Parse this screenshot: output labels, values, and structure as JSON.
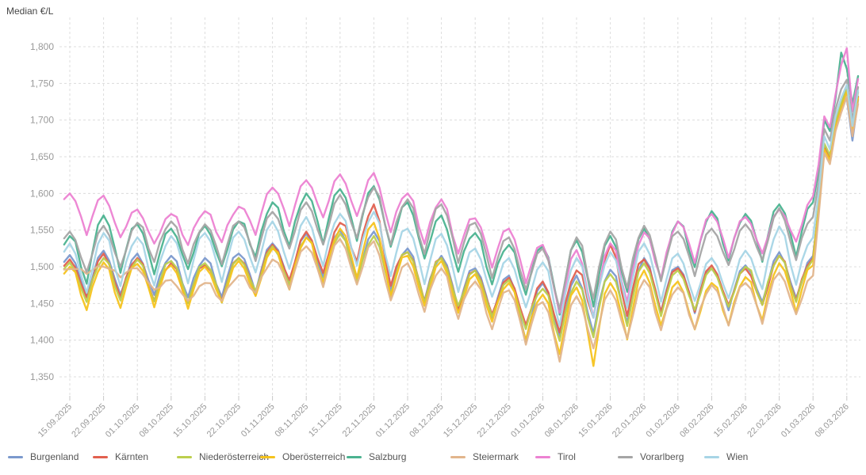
{
  "title": "Median €/L",
  "chart_data": {
    "type": "line",
    "title": "Median €/L",
    "ylabel": "Median €/L",
    "legend_position": "bottom",
    "grid": true,
    "grid_color": "#dcdcdc",
    "axis_label_color": "#999999",
    "x_tick_labels": [
      "15.09.2025",
      "22.09.2025",
      "01.10.2025",
      "08.10.2025",
      "15.10.2025",
      "22.10.2025",
      "01.11.2025",
      "08.11.2025",
      "15.11.2025",
      "22.11.2025",
      "01.12.2025",
      "08.12.2025",
      "15.12.2025",
      "22.12.2025",
      "01.01.2026",
      "08.01.2026",
      "15.01.2026",
      "22.01.2026",
      "01.02.2026",
      "08.02.2026",
      "15.02.2026",
      "22.02.2026",
      "01.03.2026",
      "08.03.2026"
    ],
    "y_ticks": [
      1350,
      1400,
      1450,
      1500,
      1550,
      1600,
      1650,
      1700,
      1750,
      1800
    ],
    "ylim": [
      1325,
      1840
    ],
    "points_per_interval": 6,
    "cycle_shape": [
      0,
      -0.18,
      -0.62,
      -1,
      -0.55,
      -0.15
    ],
    "series": [
      {
        "name": "Burgenland",
        "color": "#7b99cd",
        "weekly_highs": [
          1516,
          1522,
          1518,
          1515,
          1512,
          1518,
          1532,
          1545,
          1550,
          1548,
          1525,
          1515,
          1498,
          1488,
          1478,
          1488,
          1496,
          1512,
          1500,
          1498,
          1502,
          1520,
          1515,
          1730
        ],
        "weekly_dips": [
          62,
          60,
          56,
          55,
          55,
          58,
          60,
          64,
          65,
          70,
          66,
          62,
          60,
          88,
          80,
          84,
          80,
          66,
          60,
          56,
          62,
          62,
          0
        ],
        "tail": [
          1580,
          1665,
          1648,
          1695,
          1718,
          1730,
          1672,
          1728
        ]
      },
      {
        "name": "Kärnten",
        "color": "#e2604f",
        "weekly_highs": [
          1510,
          1518,
          1512,
          1505,
          1502,
          1512,
          1530,
          1548,
          1560,
          1585,
          1520,
          1512,
          1495,
          1485,
          1480,
          1495,
          1530,
          1510,
          1498,
          1502,
          1498,
          1515,
          1512,
          1742
        ],
        "weekly_dips": [
          58,
          58,
          55,
          52,
          52,
          56,
          60,
          64,
          66,
          78,
          62,
          60,
          58,
          64,
          78,
          82,
          86,
          64,
          58,
          55,
          60,
          60,
          0
        ],
        "tail": [
          1578,
          1662,
          1650,
          1692,
          1720,
          1742,
          1688,
          1732
        ]
      },
      {
        "name": "Niederösterreich",
        "color": "#bccf4e",
        "weekly_highs": [
          1506,
          1512,
          1510,
          1508,
          1505,
          1512,
          1528,
          1540,
          1545,
          1542,
          1520,
          1512,
          1495,
          1482,
          1470,
          1480,
          1490,
          1505,
          1495,
          1498,
          1500,
          1515,
          1510,
          1745
        ],
        "weekly_dips": [
          58,
          57,
          55,
          54,
          54,
          56,
          60,
          63,
          64,
          68,
          62,
          60,
          58,
          62,
          76,
          80,
          76,
          64,
          58,
          55,
          60,
          60,
          0
        ],
        "tail": [
          1582,
          1668,
          1652,
          1698,
          1722,
          1745,
          1690,
          1738
        ]
      },
      {
        "name": "Oberösterreich",
        "color": "#f5c31d",
        "weekly_highs": [
          1500,
          1506,
          1504,
          1502,
          1500,
          1508,
          1525,
          1540,
          1552,
          1560,
          1515,
          1508,
          1490,
          1478,
          1462,
          1472,
          1478,
          1495,
          1480,
          1478,
          1486,
          1505,
          1502,
          1738
        ],
        "weekly_dips": [
          62,
          60,
          56,
          55,
          55,
          58,
          64,
          68,
          70,
          76,
          68,
          64,
          60,
          70,
          85,
          108,
          82,
          70,
          66,
          62,
          68,
          64,
          0
        ],
        "tail": [
          1575,
          1660,
          1645,
          1690,
          1715,
          1738,
          1685,
          1730
        ]
      },
      {
        "name": "Salzburg",
        "color": "#4bb390",
        "weekly_highs": [
          1542,
          1570,
          1558,
          1552,
          1556,
          1562,
          1588,
          1600,
          1606,
          1610,
          1588,
          1570,
          1546,
          1530,
          1528,
          1536,
          1542,
          1552,
          1562,
          1576,
          1572,
          1585,
          1588,
          1770
        ],
        "weekly_dips": [
          78,
          70,
          62,
          60,
          60,
          62,
          65,
          70,
          70,
          75,
          70,
          66,
          62,
          66,
          95,
          90,
          84,
          75,
          70,
          65,
          70,
          70,
          0
        ],
        "tail": [
          1630,
          1700,
          1685,
          1730,
          1792,
          1770,
          1722,
          1760
        ]
      },
      {
        "name": "Steiermark",
        "color": "#e2b58c",
        "weekly_highs": [
          1497,
          1500,
          1498,
          1482,
          1478,
          1488,
          1510,
          1528,
          1538,
          1535,
          1505,
          1498,
          1480,
          1468,
          1452,
          1460,
          1468,
          1482,
          1472,
          1475,
          1478,
          1492,
          1488,
          1732
        ],
        "weekly_dips": [
          6,
          10,
          24,
          28,
          30,
          34,
          48,
          58,
          64,
          68,
          64,
          60,
          58,
          64,
          82,
          78,
          74,
          64,
          58,
          55,
          60,
          58,
          0
        ],
        "tail": [
          1570,
          1655,
          1640,
          1685,
          1710,
          1732,
          1678,
          1722
        ]
      },
      {
        "name": "Tirol",
        "color": "#ec82d2",
        "weekly_highs": [
          1600,
          1597,
          1578,
          1572,
          1576,
          1582,
          1608,
          1618,
          1626,
          1628,
          1600,
          1592,
          1566,
          1552,
          1530,
          1523,
          1532,
          1547,
          1562,
          1572,
          1568,
          1578,
          1596,
          1798
        ],
        "weekly_dips": [
          52,
          50,
          45,
          45,
          45,
          50,
          55,
          58,
          60,
          68,
          65,
          60,
          58,
          60,
          92,
          98,
          88,
          70,
          60,
          55,
          58,
          55,
          0
        ],
        "tail": [
          1640,
          1705,
          1690,
          1735,
          1775,
          1798,
          1712,
          1756
        ]
      },
      {
        "name": "Vorarlberg",
        "color": "#a5a5a5",
        "weekly_highs": [
          1548,
          1556,
          1560,
          1562,
          1558,
          1562,
          1575,
          1588,
          1598,
          1608,
          1592,
          1585,
          1560,
          1540,
          1525,
          1540,
          1548,
          1556,
          1548,
          1552,
          1558,
          1580,
          1568,
          1755
        ],
        "weekly_dips": [
          62,
          60,
          55,
          55,
          55,
          58,
          60,
          65,
          65,
          70,
          70,
          65,
          62,
          66,
          92,
          88,
          80,
          70,
          60,
          56,
          62,
          66,
          0
        ],
        "tail": [
          1615,
          1688,
          1672,
          1715,
          1742,
          1755,
          1700,
          1745
        ]
      },
      {
        "name": "Wien",
        "color": "#a7d5e6",
        "weekly_highs": [
          1532,
          1546,
          1540,
          1542,
          1546,
          1548,
          1562,
          1568,
          1572,
          1575,
          1552,
          1545,
          1525,
          1512,
          1506,
          1512,
          1520,
          1532,
          1518,
          1512,
          1522,
          1555,
          1540,
          1748
        ],
        "weekly_dips": [
          76,
          70,
          66,
          65,
          65,
          66,
          70,
          70,
          72,
          75,
          70,
          66,
          62,
          66,
          90,
          85,
          80,
          70,
          65,
          62,
          70,
          72,
          0
        ],
        "tail": [
          1600,
          1678,
          1660,
          1705,
          1730,
          1748,
          1692,
          1740
        ]
      }
    ]
  }
}
